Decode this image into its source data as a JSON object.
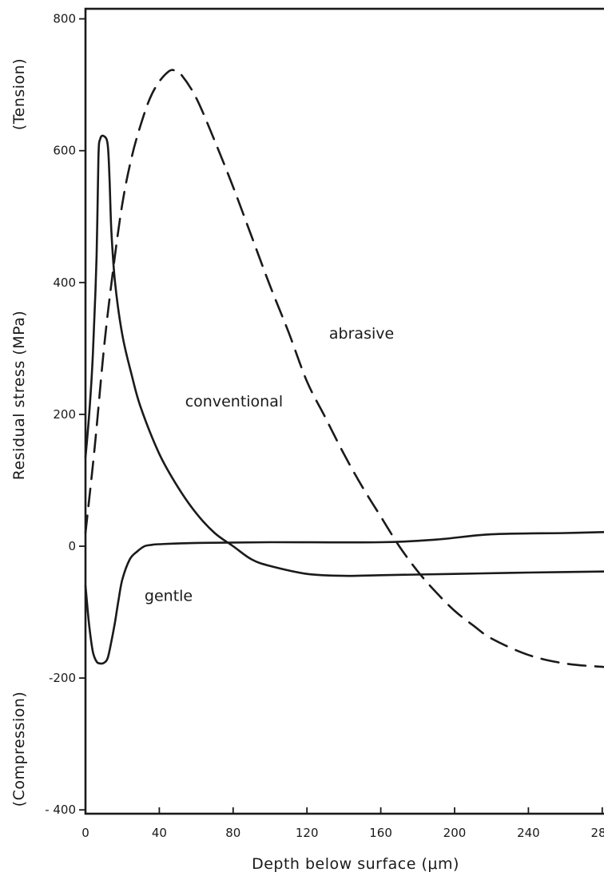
{
  "chart_data": {
    "type": "line",
    "xlabel": "Depth below surface (μm)",
    "ylabel": "Residual stress (MPa)",
    "ylabel_upper": "(Tension)",
    "ylabel_lower": "(Compression)",
    "xlim": [
      0,
      290
    ],
    "ylim": [
      -400,
      800
    ],
    "x_ticks": [
      0,
      40,
      80,
      120,
      160,
      200,
      240,
      280
    ],
    "x_tick_labels": [
      "0",
      "40",
      "80",
      "120",
      "160",
      "200",
      "240",
      "280"
    ],
    "y_ticks": [
      800,
      600,
      400,
      200,
      0,
      -200,
      -400
    ],
    "y_tick_labels": [
      "800",
      "600",
      "400",
      "200",
      "0",
      "-200",
      "- 400"
    ],
    "grid": false,
    "series": [
      {
        "name": "abrasive",
        "style": "dashed",
        "x": [
          0,
          5,
          10,
          15,
          20,
          25,
          30,
          35,
          40,
          45,
          48,
          52,
          60,
          70,
          80,
          90,
          100,
          110,
          120,
          130,
          140,
          150,
          160,
          170,
          180,
          190,
          200,
          210,
          220,
          240,
          260,
          280,
          290
        ],
        "y": [
          20,
          150,
          300,
          420,
          520,
          590,
          640,
          680,
          705,
          720,
          722,
          715,
          680,
          615,
          545,
          470,
          395,
          325,
          250,
          195,
          140,
          90,
          45,
          0,
          -38,
          -70,
          -98,
          -120,
          -140,
          -165,
          -178,
          -183,
          -185
        ]
      },
      {
        "name": "conventional",
        "style": "solid",
        "x": [
          0,
          2,
          4,
          6,
          7,
          8,
          10,
          12,
          13,
          14,
          16,
          20,
          25,
          30,
          40,
          50,
          60,
          70,
          80,
          90,
          100,
          120,
          140,
          160,
          200,
          240,
          290
        ],
        "y": [
          135,
          200,
          290,
          440,
          590,
          618,
          622,
          610,
          560,
          480,
          400,
          320,
          260,
          210,
          140,
          90,
          50,
          20,
          0,
          -20,
          -30,
          -42,
          -45,
          -44,
          -42,
          -40,
          -38
        ]
      },
      {
        "name": "gentle",
        "style": "solid",
        "x": [
          0,
          2,
          4,
          6,
          8,
          10,
          12,
          14,
          16,
          18,
          20,
          24,
          28,
          32,
          36,
          40,
          60,
          100,
          160,
          190,
          220,
          260,
          290
        ],
        "y": [
          -60,
          -120,
          -160,
          -175,
          -178,
          -177,
          -170,
          -145,
          -115,
          -80,
          -50,
          -20,
          -8,
          0,
          2,
          3,
          5,
          6,
          6,
          10,
          18,
          20,
          22
        ]
      }
    ],
    "annotations": [
      {
        "text": "abrasive",
        "x": 132,
        "y": 315
      },
      {
        "text": "conventional",
        "x": 54,
        "y": 212
      },
      {
        "text": "gentle",
        "x": 32,
        "y": -83
      }
    ],
    "legend": "none"
  }
}
